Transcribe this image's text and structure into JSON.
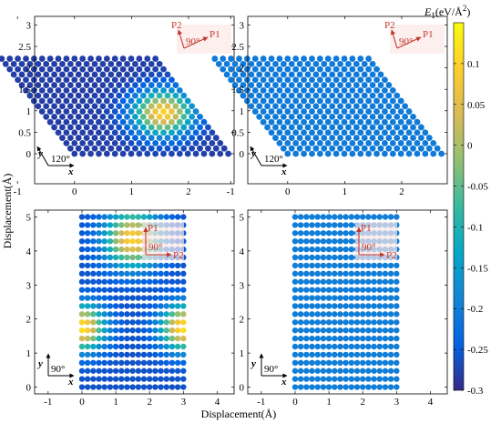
{
  "figure": {
    "xlabel": "Displacement(Å)",
    "ylabel": "Displacement(Å)"
  },
  "colorbar": {
    "label_main": "E",
    "label_sub": "1",
    "label_unit_open": "(eV/Å",
    "label_sup": "2",
    "label_close": ")",
    "min": -0.3,
    "max": 0.15,
    "ticks": [
      0.1,
      0.05,
      0,
      -0.05,
      -0.1,
      -0.15,
      -0.2,
      -0.25,
      -0.3
    ],
    "tick_labels": [
      "0.1",
      "0.05",
      "0",
      "-0.05",
      "-0.1",
      "-0.15",
      "-0.2",
      "-0.25",
      "-0.3"
    ],
    "colormap": "parula"
  },
  "chart_data": [
    {
      "type": "scatter",
      "panel": "top-left",
      "lattice": "hexagonal",
      "xlim": [
        -0.7,
        2.8
      ],
      "ylim": [
        -0.7,
        3.2
      ],
      "xticks": [
        -1,
        0,
        1,
        2
      ],
      "xtick_labels": [
        "-1",
        "0",
        "1",
        "2"
      ],
      "yticks": [
        0,
        0.5,
        1,
        1.5,
        2,
        2.5,
        3
      ],
      "ytick_labels": [
        "0",
        "0.5",
        "1",
        "1.5",
        "2",
        "2.5",
        "3"
      ],
      "rows": 19,
      "cols": 20,
      "step": 0.142,
      "angle_deg": 120,
      "base_energy": -0.28,
      "peaks": [
        {
          "x": 1.55,
          "y": 0.95,
          "sigma": 0.35,
          "amp": 0.38
        }
      ],
      "xy_angle_label": "120°",
      "axis_x_label": "x",
      "axis_y_label": "y",
      "p_angle_label": "90°",
      "p1_label": "P1",
      "p2_label": "P2"
    },
    {
      "type": "scatter",
      "panel": "top-right",
      "lattice": "hexagonal",
      "xlim": [
        -0.7,
        2.8
      ],
      "ylim": [
        -0.7,
        3.2
      ],
      "xticks": [
        -1,
        0,
        1,
        2
      ],
      "xtick_labels": [
        "-1",
        "0",
        "1",
        "2"
      ],
      "yticks": [
        0,
        0.5,
        1,
        1.5,
        2,
        2.5,
        3
      ],
      "ytick_labels": [
        "0",
        "0.5",
        "1",
        "1.5",
        "2",
        "2.5",
        "3"
      ],
      "rows": 19,
      "cols": 20,
      "step": 0.142,
      "angle_deg": 120,
      "base_energy": -0.205,
      "peaks": [],
      "xy_angle_label": "120°",
      "axis_x_label": "x",
      "axis_y_label": "y",
      "p_angle_label": "90°",
      "p1_label": "P1",
      "p2_label": "P2"
    },
    {
      "type": "scatter",
      "panel": "bottom-left",
      "lattice": "rectangular",
      "xlim": [
        -1.4,
        4.5
      ],
      "ylim": [
        -0.2,
        5.2
      ],
      "xticks": [
        -1,
        0,
        1,
        2,
        3,
        4
      ],
      "xtick_labels": [
        "-1",
        "0",
        "1",
        "2",
        "3",
        "4"
      ],
      "yticks": [
        0,
        1,
        2,
        3,
        4,
        5
      ],
      "ytick_labels": [
        "0",
        "1",
        "2",
        "3",
        "4",
        "5"
      ],
      "x_start": 0,
      "x_end": 3,
      "x_count": 19,
      "y_start": 0,
      "y_end": 5,
      "y_count": 22,
      "angle_deg": 90,
      "base_energy": -0.26,
      "peaks": [
        {
          "x": 1.5,
          "y": 4.35,
          "sigma": 0.55,
          "amp": 0.36
        },
        {
          "x": 0,
          "y": 1.75,
          "sigma": 0.45,
          "amp": 0.38
        },
        {
          "x": 3,
          "y": 1.75,
          "sigma": 0.45,
          "amp": 0.38
        }
      ],
      "xy_angle_label": "90°",
      "axis_x_label": "x",
      "axis_y_label": "y",
      "p_angle_label": "90°",
      "p1_label": "P1",
      "p2_label": "P2"
    },
    {
      "type": "scatter",
      "panel": "bottom-right",
      "lattice": "rectangular",
      "xlim": [
        -1.4,
        4.5
      ],
      "ylim": [
        -0.2,
        5.2
      ],
      "xticks": [
        -1,
        0,
        1,
        2,
        3,
        4
      ],
      "xtick_labels": [
        "-1",
        "0",
        "1",
        "2",
        "3",
        "4"
      ],
      "yticks": [
        0,
        1,
        2,
        3,
        4,
        5
      ],
      "ytick_labels": [
        "0",
        "1",
        "2",
        "3",
        "4",
        "5"
      ],
      "x_start": 0,
      "x_end": 3,
      "x_count": 19,
      "y_start": 0,
      "y_end": 5,
      "y_count": 22,
      "angle_deg": 90,
      "base_energy": -0.2,
      "peaks": [],
      "xy_angle_label": "90°",
      "axis_x_label": "x",
      "axis_y_label": "y",
      "p_angle_label": "90°",
      "p1_label": "P1",
      "p2_label": "P2"
    }
  ]
}
